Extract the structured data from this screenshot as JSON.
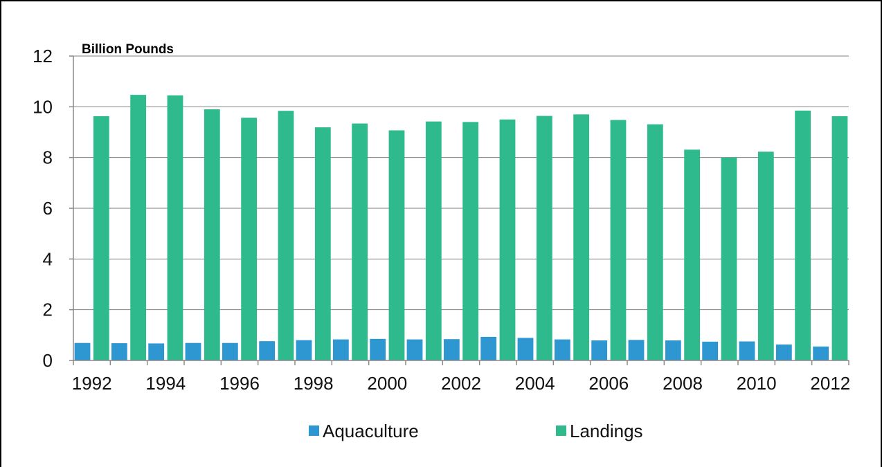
{
  "chart_data": {
    "type": "bar",
    "ylabel": "Billion Pounds",
    "ylim": [
      0,
      12
    ],
    "yticks": [
      0,
      2,
      4,
      6,
      8,
      10,
      12
    ],
    "categories": [
      "1992",
      "1993",
      "1994",
      "1995",
      "1996",
      "1997",
      "1998",
      "1999",
      "2000",
      "2001",
      "2002",
      "2003",
      "2004",
      "2005",
      "2006",
      "2007",
      "2008",
      "2009",
      "2010",
      "2011",
      "2012"
    ],
    "x_tick_labels": [
      "1992",
      "1994",
      "1996",
      "1998",
      "2000",
      "2002",
      "2004",
      "2006",
      "2008",
      "2010",
      "2012"
    ],
    "grid": true,
    "legend_position": "bottom",
    "series": [
      {
        "name": "Aquaculture",
        "color": "#2e96d0",
        "values": [
          0.69,
          0.68,
          0.67,
          0.69,
          0.69,
          0.76,
          0.8,
          0.83,
          0.85,
          0.83,
          0.84,
          0.93,
          0.89,
          0.83,
          0.79,
          0.81,
          0.79,
          0.74,
          0.75,
          0.63,
          0.55
        ]
      },
      {
        "name": "Landings",
        "color": "#2fba8e",
        "values": [
          9.63,
          10.47,
          10.45,
          9.9,
          9.57,
          9.84,
          9.19,
          9.34,
          9.07,
          9.42,
          9.4,
          9.5,
          9.64,
          9.7,
          9.48,
          9.31,
          8.31,
          8.0,
          8.23,
          9.85,
          9.63
        ]
      }
    ]
  }
}
